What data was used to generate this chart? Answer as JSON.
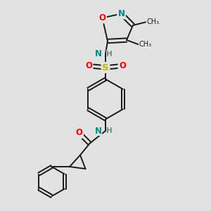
{
  "background_color": "#e2e2e2",
  "bond_color": "#1a1a1a",
  "atom_colors": {
    "N": "#008b8b",
    "O": "#ff0000",
    "S": "#c8b400",
    "H": "#6a8a8a",
    "C": "#1a1a1a"
  },
  "figsize": [
    3.0,
    3.0
  ],
  "dpi": 100,
  "xlim": [
    0,
    10
  ],
  "ylim": [
    0,
    10
  ]
}
